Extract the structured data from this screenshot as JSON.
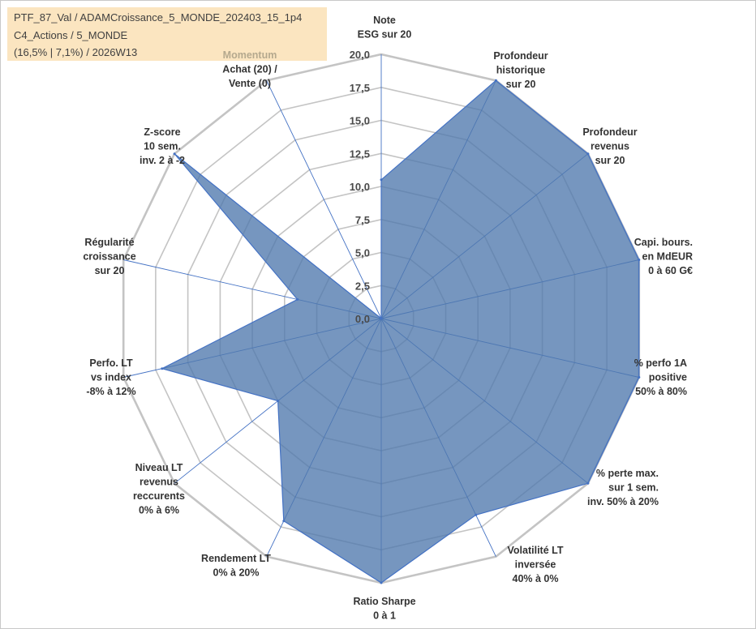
{
  "header": {
    "line1": "PTF_87_Val / ADAMCroissance_5_MONDE_202403_15_1p4",
    "line2": "C4_Actions / 5_MONDE",
    "line3": "(16,5% | 7,1%) / 2026W13"
  },
  "chart_data": {
    "type": "radar",
    "title": "",
    "rmin": 0,
    "rmax": 20,
    "ticks": [
      "0,0",
      "2,5",
      "5,0",
      "7,5",
      "10,0",
      "12,5",
      "15,0",
      "17,5",
      "20,0"
    ],
    "tick_values": [
      0,
      2.5,
      5,
      7.5,
      10,
      12.5,
      15,
      17.5,
      20
    ],
    "colors": {
      "fill": "#4f79ad",
      "stroke": "#4472c4",
      "grid": "#c4c4c4",
      "axis": "#4472c4"
    },
    "axes": [
      {
        "lines": [
          "Note",
          "ESG sur 20"
        ],
        "value": 10.5
      },
      {
        "lines": [
          "Profondeur",
          "historique",
          "sur 20"
        ],
        "value": 20
      },
      {
        "lines": [
          "Profondeur",
          "revenus",
          "sur 20"
        ],
        "value": 20
      },
      {
        "lines": [
          "Capi. bours.",
          "en MdEUR",
          "0 à 60 G€"
        ],
        "value": 20
      },
      {
        "lines": [
          "% perfo 1A",
          "positive",
          "50% à 80%"
        ],
        "value": 20
      },
      {
        "lines": [
          "% perte max.",
          "sur 1 sem.",
          "inv. 50% à 20%"
        ],
        "value": 20
      },
      {
        "lines": [
          "Volatilité LT",
          "inversée",
          "40% à 0%"
        ],
        "value": 16.5
      },
      {
        "lines": [
          "Ratio Sharpe",
          "0 à 1"
        ],
        "value": 20
      },
      {
        "lines": [
          "Rendement LT",
          "0% à 20%"
        ],
        "value": 17
      },
      {
        "lines": [
          "Niveau LT",
          "revenus",
          "reccurents",
          "0% à 6%"
        ],
        "value": 10
      },
      {
        "lines": [
          "Perfo. LT",
          "vs index",
          "-8% à 12%"
        ],
        "value": 17
      },
      {
        "lines": [
          "Régularité",
          "croissance",
          "sur 20"
        ],
        "value": 6.5
      },
      {
        "lines": [
          "Z-score",
          "10 sem.",
          "inv. 2 à -2"
        ],
        "value": 20
      },
      {
        "lines": [
          "Momentum",
          "Achat (20) /",
          "Vente (0)"
        ],
        "value": 0
      }
    ]
  }
}
